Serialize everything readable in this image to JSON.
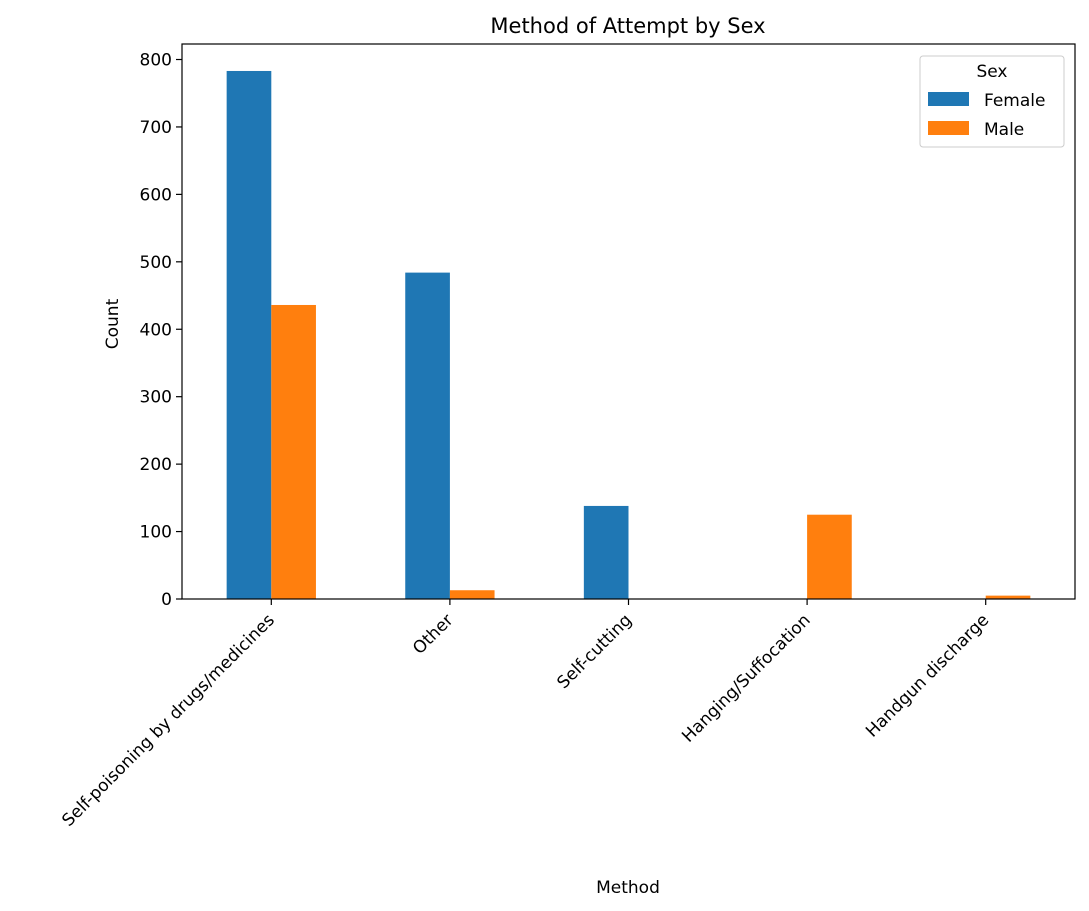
{
  "chart_data": {
    "type": "bar",
    "title": "Method of Attempt by Sex",
    "xlabel": "Method",
    "ylabel": "Count",
    "categories": [
      "Self-poisoning by drugs/medicines",
      "Other",
      "Self-cutting",
      "Hanging/Suffocation",
      "Handgun discharge"
    ],
    "series": [
      {
        "name": "Female",
        "color": "#1f77b4",
        "values": [
          783,
          484,
          138,
          0,
          0
        ]
      },
      {
        "name": "Male",
        "color": "#ff7f0e",
        "values": [
          436,
          13,
          0,
          125,
          5
        ]
      }
    ],
    "ylim": [
      0,
      823
    ],
    "yticks": [
      0,
      100,
      200,
      300,
      400,
      500,
      600,
      700,
      800
    ],
    "legend": {
      "title": "Sex",
      "position": "top-right"
    },
    "grid": false
  }
}
